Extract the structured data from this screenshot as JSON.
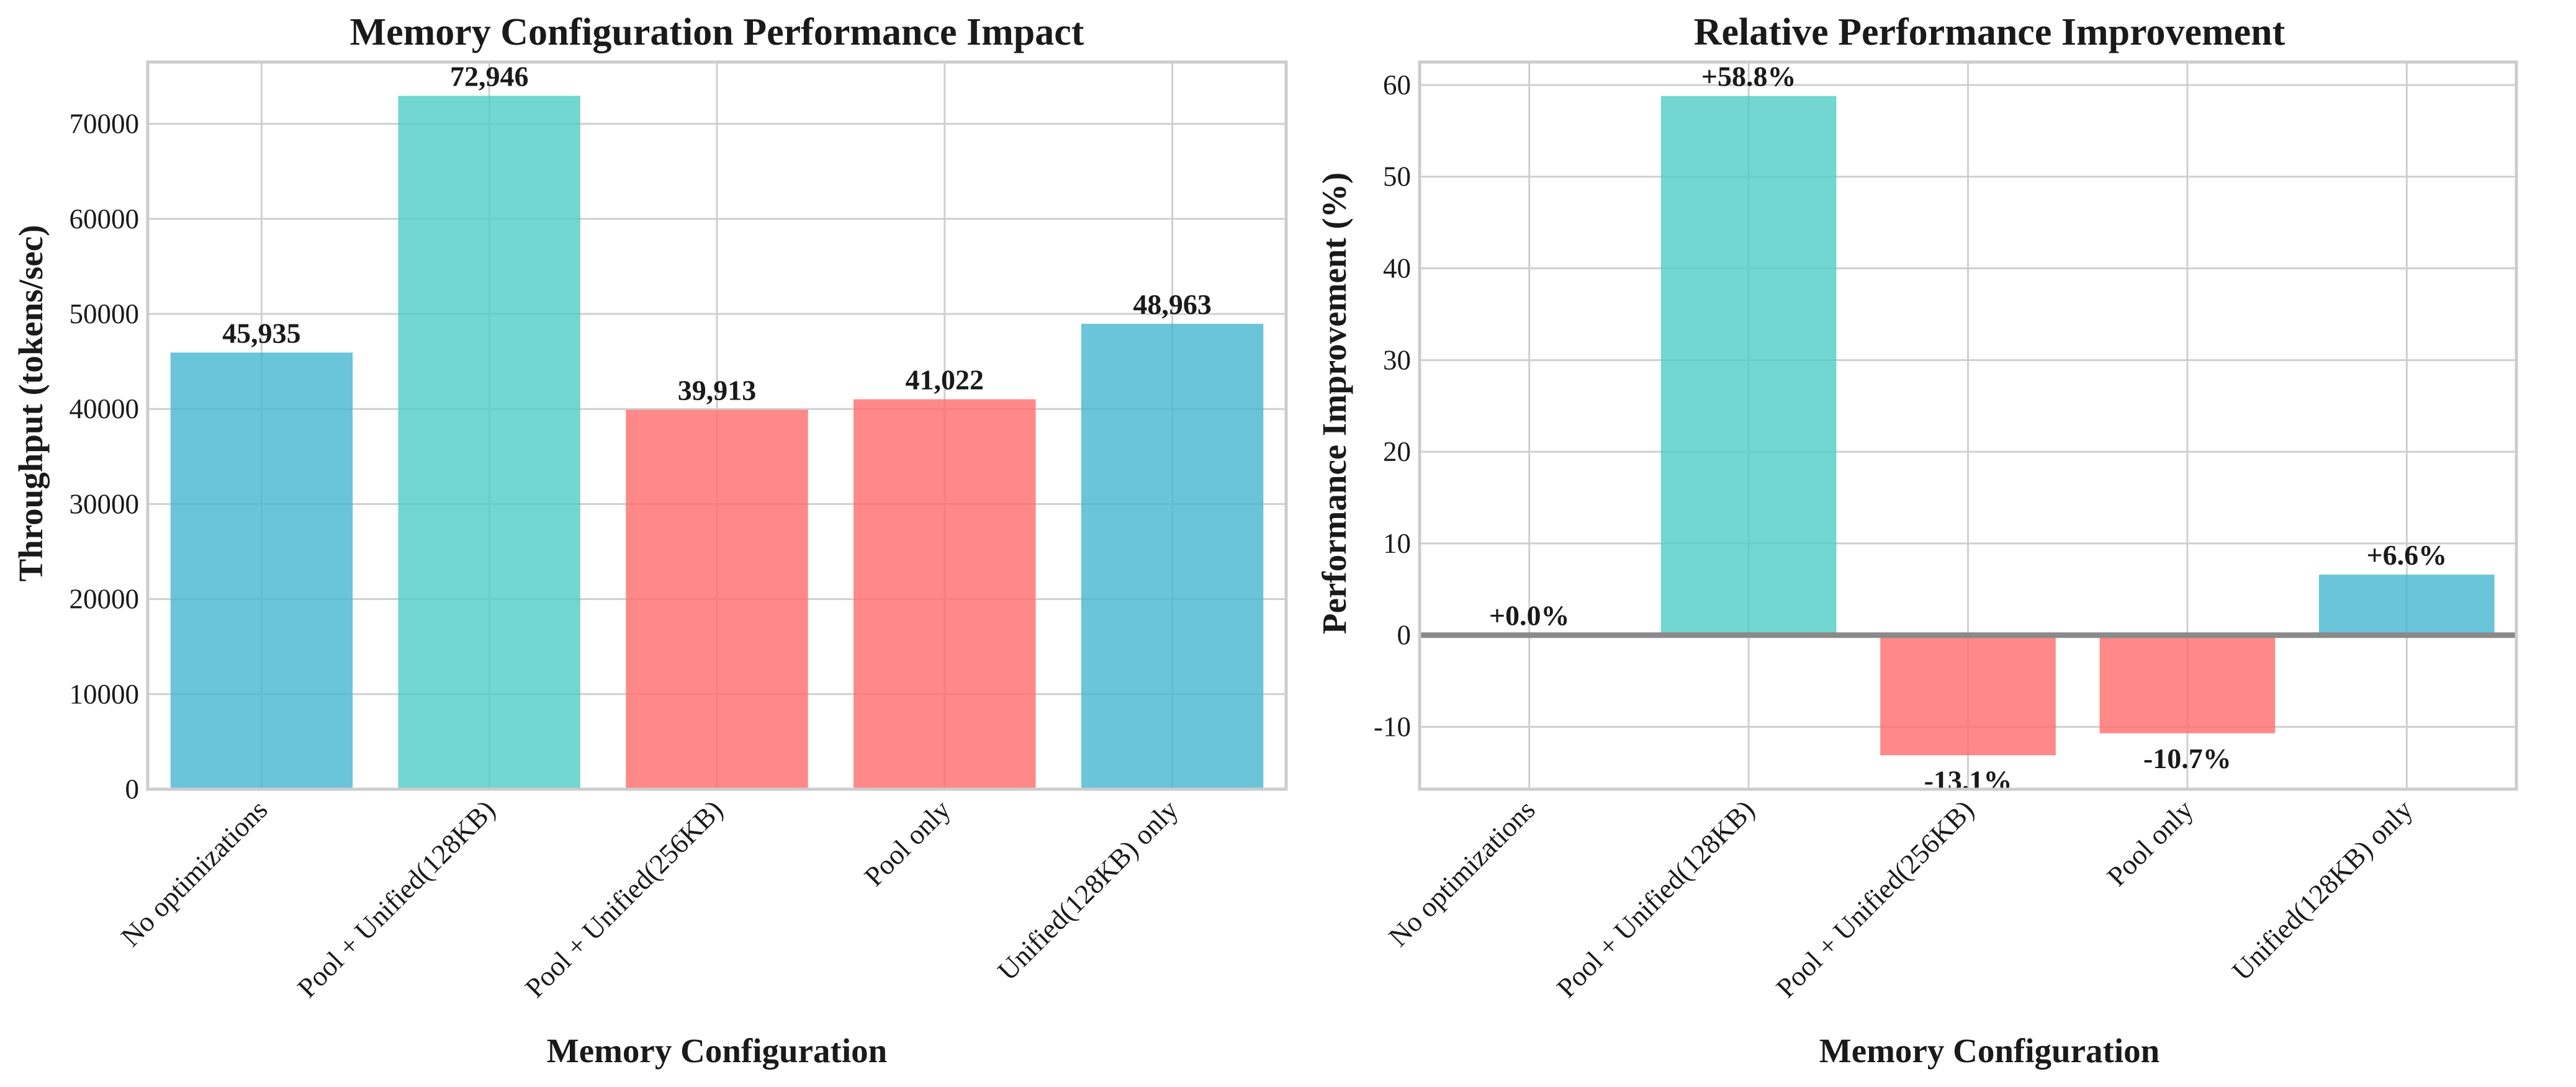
{
  "chart_data": [
    {
      "type": "bar",
      "title": "Memory Configuration Performance Impact",
      "xlabel": "Memory Configuration",
      "ylabel": "Throughput (tokens/sec)",
      "categories": [
        "No optimizations",
        "Pool + Unified(128KB)",
        "Pool + Unified(256KB)",
        "Pool only",
        "Unified(128KB) only"
      ],
      "values": [
        45935,
        72946,
        39913,
        41022,
        48963
      ],
      "value_labels": [
        "45,935",
        "72,946",
        "39,913",
        "41,022",
        "48,963"
      ],
      "bar_colors": [
        "#45B7D1",
        "#4ECDC4",
        "#FF6B6B",
        "#FF6B6B",
        "#45B7D1"
      ],
      "ylim": [
        0,
        76500
      ],
      "yticks": [
        0,
        10000,
        20000,
        30000,
        40000,
        50000,
        60000,
        70000
      ],
      "grid": true,
      "legend": "none"
    },
    {
      "type": "bar",
      "title": "Relative Performance Improvement",
      "xlabel": "Memory Configuration",
      "ylabel": "Performance Improvement (%)",
      "categories": [
        "No optimizations",
        "Pool + Unified(128KB)",
        "Pool + Unified(256KB)",
        "Pool only",
        "Unified(128KB) only"
      ],
      "values": [
        0.0,
        58.8,
        -13.1,
        -10.7,
        6.6
      ],
      "value_labels": [
        "+0.0%",
        "+58.8%",
        "-13.1%",
        "-10.7%",
        "+6.6%"
      ],
      "bar_colors": [
        "#45B7D1",
        "#4ECDC4",
        "#FF6B6B",
        "#FF6B6B",
        "#45B7D1"
      ],
      "ylim": [
        -16.8,
        62.5
      ],
      "yticks": [
        -10,
        0,
        10,
        20,
        30,
        40,
        50,
        60
      ],
      "zero_line": true,
      "grid": true,
      "legend": "none"
    }
  ]
}
